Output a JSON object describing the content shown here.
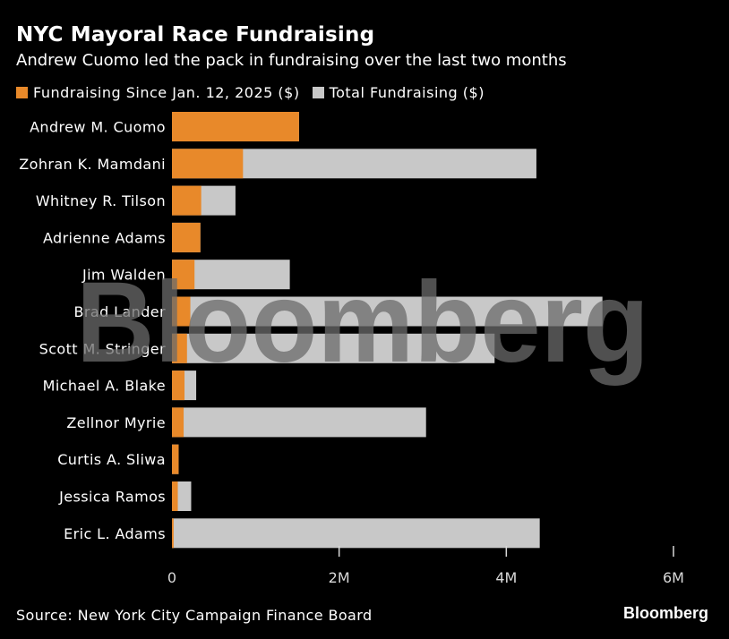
{
  "colors": {
    "background": "#000000",
    "since_jan": "#e8892a",
    "total": "#c8c8c8",
    "text": "#ffffff",
    "axis_text": "#d9d9d9",
    "watermark": "#6b6b6b"
  },
  "chart_data": {
    "type": "bar",
    "orientation": "horizontal",
    "stacked": true,
    "title": "NYC Mayoral Race Fundraising",
    "subtitle": "Andrew Cuomo led the pack in fundraising over the last two months",
    "categories": [
      "Andrew M. Cuomo",
      "Zohran K. Mamdani",
      "Whitney R. Tilson",
      "Adrienne Adams",
      "Jim Walden",
      "Brad Lander",
      "Scott M. Stringer",
      "Michael A. Blake",
      "Zellnor Myrie",
      "Curtis A. Sliwa",
      "Jessica Ramos",
      "Eric L. Adams"
    ],
    "series": [
      {
        "name": "Fundraising Since Jan. 12, 2025 ($)",
        "values": [
          1520000,
          850000,
          350000,
          340000,
          270000,
          220000,
          180000,
          150000,
          140000,
          80000,
          70000,
          20000
        ]
      },
      {
        "name": "Total Fundraising ($)",
        "values": [
          1520000,
          4360000,
          760000,
          340000,
          1410000,
          5150000,
          3860000,
          290000,
          3040000,
          80000,
          230000,
          4400000
        ]
      }
    ],
    "x_ticks": [
      0,
      2000000,
      4000000,
      6000000
    ],
    "x_tick_labels": [
      "0",
      "2M",
      "4M",
      "6M"
    ],
    "xlim": [
      0,
      6000000
    ],
    "grid": false,
    "legend_position": "top-left",
    "source": "Source: New York City Campaign Finance Board",
    "watermark": "Bloomberg",
    "brand": "Bloomberg"
  }
}
